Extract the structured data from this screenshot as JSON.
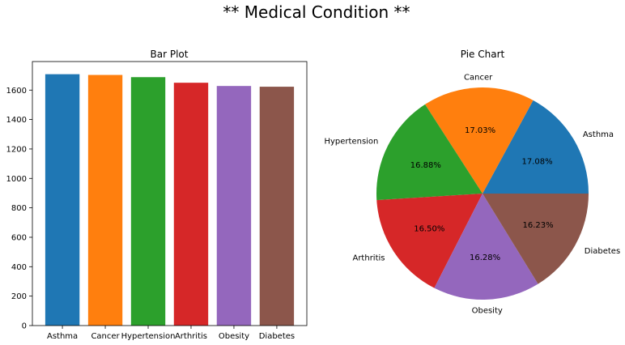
{
  "figure": {
    "title": "** Medical Condition **"
  },
  "chart_data": [
    {
      "type": "bar",
      "title": "Bar Plot",
      "xlabel": "",
      "ylabel": "",
      "categories": [
        "Asthma",
        "Cancer",
        "Hypertension",
        "Arthritis",
        "Obesity",
        "Diabetes"
      ],
      "values": [
        1708,
        1703,
        1688,
        1650,
        1628,
        1623
      ],
      "colors": [
        "#1f77b4",
        "#ff7f0e",
        "#2ca02c",
        "#d62728",
        "#9467bd",
        "#8c564b"
      ],
      "ylim": [
        0,
        1794
      ],
      "yticks": [
        0,
        200,
        400,
        600,
        800,
        1000,
        1200,
        1400,
        1600
      ],
      "grid": false
    },
    {
      "type": "pie",
      "title": "Pie Chart",
      "labels": [
        "Asthma",
        "Cancer",
        "Hypertension",
        "Arthritis",
        "Obesity",
        "Diabetes"
      ],
      "values": [
        17.08,
        17.03,
        16.88,
        16.5,
        16.28,
        16.23
      ],
      "pct_labels": [
        "17.08%",
        "17.03%",
        "16.88%",
        "16.50%",
        "16.28%",
        "16.23%"
      ],
      "colors": [
        "#1f77b4",
        "#ff7f0e",
        "#2ca02c",
        "#d62728",
        "#9467bd",
        "#8c564b"
      ]
    }
  ]
}
